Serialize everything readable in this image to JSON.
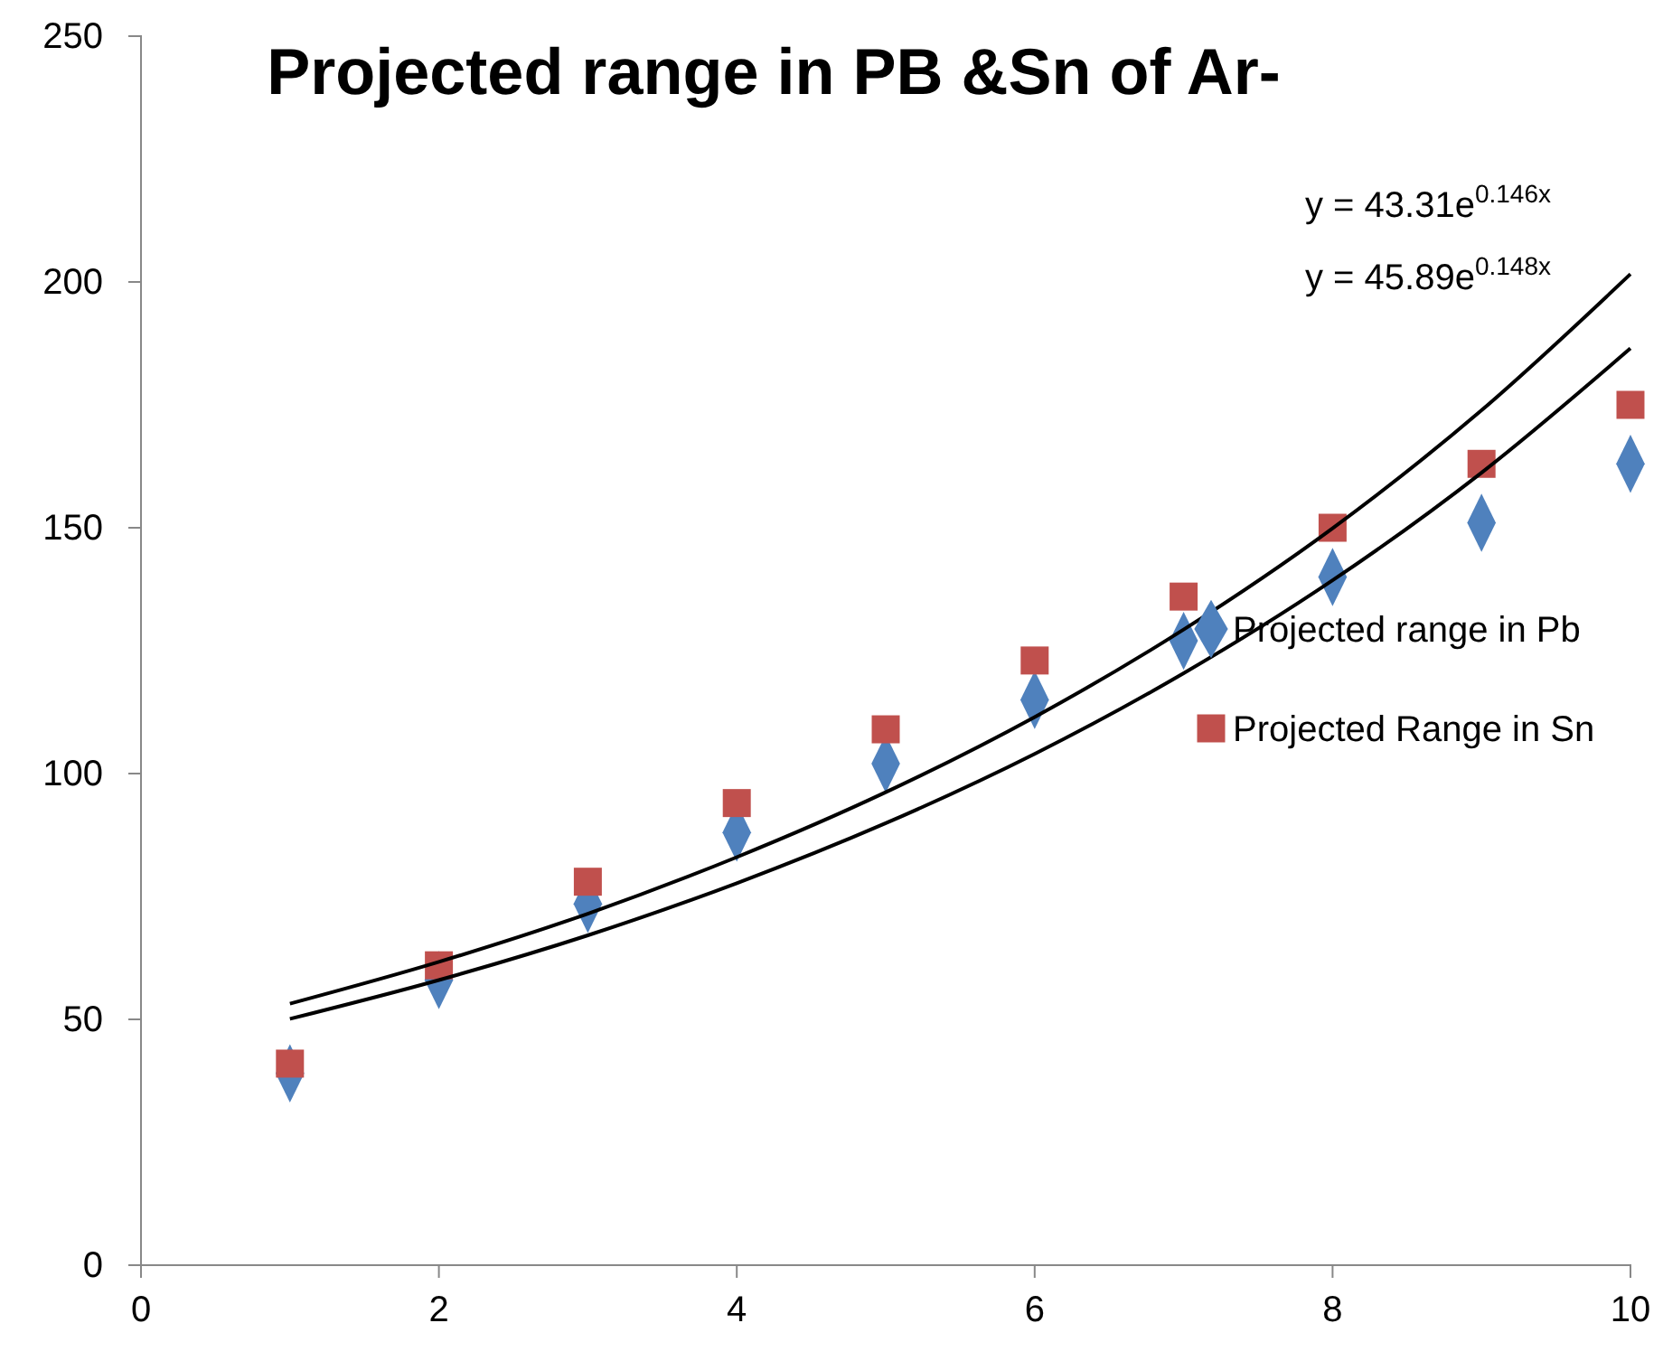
{
  "chart_data": {
    "type": "scatter",
    "title": "Projected range in PB &Sn of Ar-",
    "xlim": [
      0,
      10
    ],
    "xticks": [
      0,
      2,
      4,
      6,
      8,
      10
    ],
    "ylim": [
      0,
      250
    ],
    "yticks": [
      0,
      50,
      100,
      150,
      200,
      250
    ],
    "grid": false,
    "legend": "right",
    "annotations": [
      "y = 43.31e$^{0.146x}$",
      "y = 45.89e$^{0.148x}$"
    ],
    "series": [
      {
        "name": "Projected range in Pb",
        "marker": "diamond",
        "color": "#4f81bd",
        "x": [
          1,
          2,
          3,
          4,
          5,
          6,
          7,
          8,
          9,
          10
        ],
        "values": [
          39,
          58,
          73.5,
          88,
          102,
          115,
          127,
          140,
          151,
          163
        ]
      },
      {
        "name": "Projected Range in Sn",
        "marker": "square",
        "color": "#c0504d",
        "x": [
          1,
          2,
          3,
          4,
          5,
          6,
          7,
          8,
          9,
          10
        ],
        "values": [
          41,
          61,
          78,
          94,
          109,
          123,
          136,
          150,
          163,
          175
        ]
      },
      {
        "type": "line",
        "marker": "none",
        "color": "#000000",
        "x": [
          1,
          2,
          3,
          4,
          5,
          6,
          7,
          8,
          9,
          10
        ],
        "values": [
          50.1,
          58.0,
          67.1,
          77.7,
          89.9,
          104.0,
          120.4,
          139.3,
          161.2,
          186.5
        ]
      },
      {
        "type": "line",
        "marker": "none",
        "color": "#000000",
        "x": [
          1,
          2,
          3,
          4,
          5,
          6,
          7,
          8,
          9,
          10
        ],
        "values": [
          53.2,
          61.7,
          71.5,
          83.0,
          96.2,
          111.5,
          129.3,
          149.9,
          173.9,
          201.6
        ]
      }
    ]
  }
}
